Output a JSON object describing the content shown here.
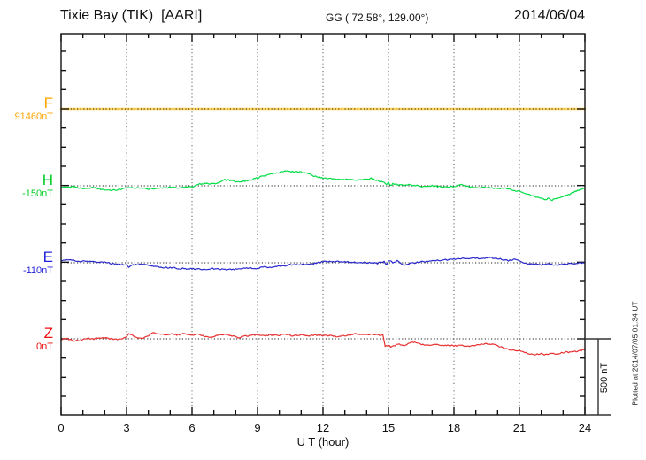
{
  "header": {
    "station": "Tixie Bay (TIK)  [AARI]",
    "coords": "GG ( 72.58°, 129.00°)",
    "date": "2014/06/04"
  },
  "x_axis": {
    "title": "U T (hour)"
  },
  "side": {
    "scale_bar_label": "500 nT",
    "plotted_at": "Plotted at 2014/07/05 01:34 UT"
  },
  "chart_data": {
    "type": "line",
    "title": "Magnetogram Tixie Bay (TIK) [AARI] 2014/06/04",
    "xlabel": "U T (hour)",
    "x_range": [
      0,
      24
    ],
    "x_major_ticks": [
      "0",
      "3",
      "6",
      "9",
      "12",
      "15",
      "18",
      "21",
      "24"
    ],
    "x_minor_tick_hours": 1,
    "y_division_nT": 500,
    "y_minor_tick_nT": 125,
    "grid": "vertical dotted lines every 3 h; dotted horizontal baseline per component",
    "legend_position": "left margin, one colored label per component",
    "series": [
      {
        "component": "F",
        "value_label": "91460nT",
        "base_nT": 91460,
        "label_color": "#FFA500",
        "line_color": "#FFD25A",
        "points": [
          [
            0,
            91460
          ],
          [
            24,
            91460
          ]
        ]
      },
      {
        "component": "H",
        "value_label": "-150nT",
        "base_nT": -150,
        "label_color": "#00CC22",
        "line_color": "#00DD44",
        "points": [
          [
            0,
            -162
          ],
          [
            0.5,
            -156
          ],
          [
            1,
            -167
          ],
          [
            1.5,
            -162
          ],
          [
            2,
            -176
          ],
          [
            2.5,
            -179
          ],
          [
            3,
            -164
          ],
          [
            3.5,
            -162
          ],
          [
            4,
            -170
          ],
          [
            4.5,
            -164
          ],
          [
            5,
            -162
          ],
          [
            5.5,
            -162
          ],
          [
            6,
            -159
          ],
          [
            6.3,
            -138
          ],
          [
            6.7,
            -136
          ],
          [
            7,
            -138
          ],
          [
            7.3,
            -127
          ],
          [
            7.5,
            -112
          ],
          [
            7.8,
            -115
          ],
          [
            8,
            -124
          ],
          [
            8.3,
            -121
          ],
          [
            8.6,
            -115
          ],
          [
            9,
            -98
          ],
          [
            9.3,
            -86
          ],
          [
            9.6,
            -75
          ],
          [
            10,
            -61
          ],
          [
            10.3,
            -55
          ],
          [
            10.6,
            -58
          ],
          [
            11,
            -61
          ],
          [
            11.3,
            -69
          ],
          [
            11.6,
            -86
          ],
          [
            12,
            -101
          ],
          [
            12.5,
            -107
          ],
          [
            13,
            -110
          ],
          [
            13.5,
            -112
          ],
          [
            14,
            -107
          ],
          [
            14.2,
            -101
          ],
          [
            14.5,
            -115
          ],
          [
            14.8,
            -130
          ],
          [
            14.9,
            -144
          ],
          [
            15,
            -130
          ],
          [
            15.1,
            -147
          ],
          [
            15.2,
            -138
          ],
          [
            15.5,
            -147
          ],
          [
            16,
            -144
          ],
          [
            16.5,
            -153
          ],
          [
            17,
            -150
          ],
          [
            17.5,
            -159
          ],
          [
            18,
            -153
          ],
          [
            18.3,
            -141
          ],
          [
            18.6,
            -153
          ],
          [
            19,
            -162
          ],
          [
            19.5,
            -159
          ],
          [
            20,
            -167
          ],
          [
            20.3,
            -162
          ],
          [
            20.6,
            -173
          ],
          [
            21,
            -188
          ],
          [
            21.3,
            -202
          ],
          [
            21.6,
            -216
          ],
          [
            22,
            -231
          ],
          [
            22.2,
            -239
          ],
          [
            22.3,
            -234
          ],
          [
            22.5,
            -242
          ],
          [
            22.8,
            -231
          ],
          [
            23,
            -219
          ],
          [
            23.3,
            -205
          ],
          [
            23.6,
            -185
          ],
          [
            24,
            -164
          ]
        ]
      },
      {
        "component": "E",
        "value_label": "-110nT",
        "base_nT": -110,
        "label_color": "#2222DD",
        "line_color": "#2828CC",
        "points": [
          [
            0,
            -96
          ],
          [
            0.5,
            -93
          ],
          [
            1,
            -101
          ],
          [
            1.5,
            -104
          ],
          [
            2,
            -107
          ],
          [
            2.5,
            -119
          ],
          [
            3,
            -122
          ],
          [
            3.1,
            -136
          ],
          [
            3.3,
            -122
          ],
          [
            3.6,
            -119
          ],
          [
            4,
            -124
          ],
          [
            4.5,
            -139
          ],
          [
            5,
            -142
          ],
          [
            5.5,
            -148
          ],
          [
            6,
            -150
          ],
          [
            6.5,
            -153
          ],
          [
            7,
            -148
          ],
          [
            7.5,
            -153
          ],
          [
            8,
            -153
          ],
          [
            8.5,
            -145
          ],
          [
            9,
            -148
          ],
          [
            9.2,
            -136
          ],
          [
            9.5,
            -139
          ],
          [
            10,
            -133
          ],
          [
            10.5,
            -124
          ],
          [
            11,
            -122
          ],
          [
            11.5,
            -116
          ],
          [
            12,
            -104
          ],
          [
            12.3,
            -101
          ],
          [
            13,
            -104
          ],
          [
            13.5,
            -107
          ],
          [
            14,
            -110
          ],
          [
            14.5,
            -113
          ],
          [
            14.8,
            -104
          ],
          [
            14.9,
            -127
          ],
          [
            15,
            -98
          ],
          [
            15.2,
            -107
          ],
          [
            15.4,
            -98
          ],
          [
            15.6,
            -119
          ],
          [
            15.8,
            -124
          ],
          [
            16,
            -113
          ],
          [
            16.5,
            -104
          ],
          [
            17,
            -96
          ],
          [
            17.5,
            -93
          ],
          [
            18,
            -87
          ],
          [
            18.5,
            -81
          ],
          [
            19,
            -78
          ],
          [
            19.3,
            -84
          ],
          [
            19.6,
            -75
          ],
          [
            20,
            -81
          ],
          [
            20.5,
            -96
          ],
          [
            20.8,
            -87
          ],
          [
            21,
            -101
          ],
          [
            21.3,
            -113
          ],
          [
            21.6,
            -119
          ],
          [
            22,
            -122
          ],
          [
            22.3,
            -116
          ],
          [
            22.6,
            -124
          ],
          [
            23,
            -122
          ],
          [
            23.3,
            -113
          ],
          [
            23.6,
            -116
          ],
          [
            24,
            -107
          ]
        ]
      },
      {
        "component": "Z",
        "value_label": "0nT",
        "base_nT": 0,
        "label_color": "#EE1111",
        "line_color": "#E83030",
        "points": [
          [
            0,
            -3
          ],
          [
            0.3,
            0
          ],
          [
            0.6,
            -14
          ],
          [
            0.9,
            -9
          ],
          [
            1.2,
            3
          ],
          [
            1.5,
            0
          ],
          [
            1.8,
            6
          ],
          [
            2.1,
            3
          ],
          [
            2.4,
            -3
          ],
          [
            2.7,
            0
          ],
          [
            3,
            9
          ],
          [
            3.1,
            35
          ],
          [
            3.3,
            20
          ],
          [
            3.5,
            6
          ],
          [
            3.7,
            3
          ],
          [
            4,
            23
          ],
          [
            4.2,
            38
          ],
          [
            4.5,
            32
          ],
          [
            4.8,
            29
          ],
          [
            5,
            32
          ],
          [
            5.3,
            26
          ],
          [
            5.6,
            32
          ],
          [
            6,
            26
          ],
          [
            6.3,
            32
          ],
          [
            6.5,
            20
          ],
          [
            6.8,
            9
          ],
          [
            7,
            17
          ],
          [
            7.3,
            26
          ],
          [
            7.6,
            29
          ],
          [
            8,
            14
          ],
          [
            8.1,
            6
          ],
          [
            8.4,
            17
          ],
          [
            8.7,
            23
          ],
          [
            9,
            26
          ],
          [
            9.3,
            20
          ],
          [
            9.6,
            26
          ],
          [
            10,
            23
          ],
          [
            10.3,
            29
          ],
          [
            10.6,
            20
          ],
          [
            11,
            26
          ],
          [
            11.3,
            20
          ],
          [
            11.6,
            26
          ],
          [
            12,
            23
          ],
          [
            12.3,
            20
          ],
          [
            12.6,
            17
          ],
          [
            13,
            20
          ],
          [
            13.3,
            29
          ],
          [
            13.5,
            32
          ],
          [
            13.8,
            29
          ],
          [
            14,
            26
          ],
          [
            14.3,
            29
          ],
          [
            14.6,
            26
          ],
          [
            14.75,
            23
          ],
          [
            14.85,
            -46
          ],
          [
            15,
            -40
          ],
          [
            15.1,
            -55
          ],
          [
            15.3,
            -43
          ],
          [
            15.5,
            -35
          ],
          [
            15.7,
            -43
          ],
          [
            15.9,
            -29
          ],
          [
            16.1,
            -23
          ],
          [
            16.2,
            -17
          ],
          [
            16.4,
            -32
          ],
          [
            16.7,
            -43
          ],
          [
            17,
            -40
          ],
          [
            17.3,
            -38
          ],
          [
            17.6,
            -43
          ],
          [
            18,
            -46
          ],
          [
            18.3,
            -43
          ],
          [
            18.6,
            -49
          ],
          [
            19,
            -43
          ],
          [
            19.3,
            -35
          ],
          [
            19.5,
            -32
          ],
          [
            19.8,
            -38
          ],
          [
            20,
            -46
          ],
          [
            20.3,
            -61
          ],
          [
            20.6,
            -72
          ],
          [
            21,
            -75
          ],
          [
            21.3,
            -89
          ],
          [
            21.5,
            -98
          ],
          [
            21.7,
            -101
          ],
          [
            22,
            -95
          ],
          [
            22.2,
            -104
          ],
          [
            22.5,
            -95
          ],
          [
            22.8,
            -98
          ],
          [
            23,
            -89
          ],
          [
            23.3,
            -86
          ],
          [
            23.6,
            -81
          ],
          [
            24,
            -72
          ]
        ]
      }
    ]
  }
}
